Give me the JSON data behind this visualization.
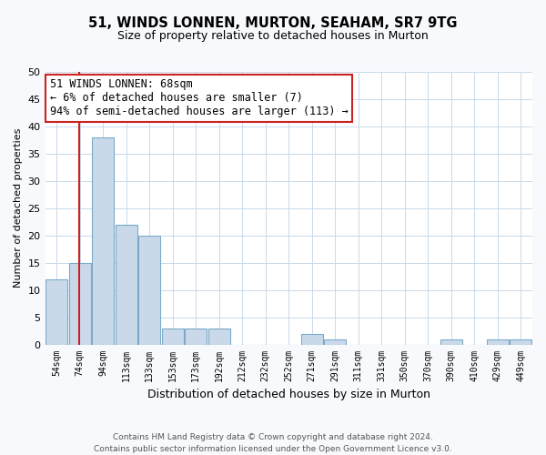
{
  "title": "51, WINDS LONNEN, MURTON, SEAHAM, SR7 9TG",
  "subtitle": "Size of property relative to detached houses in Murton",
  "xlabel": "Distribution of detached houses by size in Murton",
  "ylabel": "Number of detached properties",
  "bins": [
    "54sqm",
    "74sqm",
    "94sqm",
    "113sqm",
    "133sqm",
    "153sqm",
    "173sqm",
    "192sqm",
    "212sqm",
    "232sqm",
    "252sqm",
    "271sqm",
    "291sqm",
    "311sqm",
    "331sqm",
    "350sqm",
    "370sqm",
    "390sqm",
    "410sqm",
    "429sqm",
    "449sqm"
  ],
  "values": [
    12,
    15,
    38,
    22,
    20,
    3,
    3,
    3,
    0,
    0,
    0,
    2,
    1,
    0,
    0,
    0,
    0,
    1,
    0,
    1,
    1
  ],
  "bar_color": "#c9d9ea",
  "bar_edge_color": "#7aaac8",
  "highlight_color": "#cc2222",
  "annotation_text": "51 WINDS LONNEN: 68sqm\n← 6% of detached houses are smaller (7)\n94% of semi-detached houses are larger (113) →",
  "annotation_box_facecolor": "#ffffff",
  "annotation_box_edgecolor": "#cc2222",
  "ylim": [
    0,
    50
  ],
  "yticks": [
    0,
    5,
    10,
    15,
    20,
    25,
    30,
    35,
    40,
    45,
    50
  ],
  "footer_line1": "Contains HM Land Registry data © Crown copyright and database right 2024.",
  "footer_line2": "Contains public sector information licensed under the Open Government Licence v3.0.",
  "bg_color": "#f7f9fc",
  "plot_bg_color": "#ffffff",
  "grid_color": "#c9d9ea"
}
